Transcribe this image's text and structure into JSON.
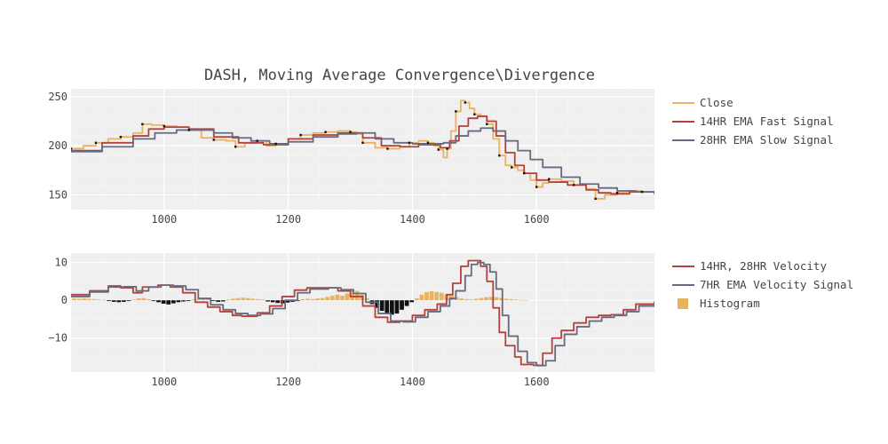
{
  "title": "DASH, Moving Average Convergence\\Divergence",
  "colors": {
    "close": "#e8b35e",
    "fast": "#b5413a",
    "slow": "#666a80",
    "histogram": "#e8b35e",
    "histogram_negative": "#111111",
    "marker": "#111111",
    "plot_bg": "#efefef",
    "grid": "#ffffff"
  },
  "chart_data": [
    {
      "type": "line",
      "panel": "price",
      "xlim": [
        850,
        1790
      ],
      "ylim": [
        135,
        258
      ],
      "x_ticks": [
        1000,
        1200,
        1400,
        1600
      ],
      "y_ticks": [
        150,
        200,
        250
      ],
      "grid": true,
      "legend_position": "right",
      "series": [
        {
          "name": "Close",
          "color_key": "close",
          "points": [
            [
              850,
              197
            ],
            [
              870,
              200
            ],
            [
              890,
              203
            ],
            [
              910,
              207
            ],
            [
              930,
              209
            ],
            [
              950,
              213
            ],
            [
              965,
              222
            ],
            [
              980,
              221
            ],
            [
              1000,
              220
            ],
            [
              1020,
              219
            ],
            [
              1040,
              216
            ],
            [
              1060,
              208
            ],
            [
              1080,
              206
            ],
            [
              1100,
              205
            ],
            [
              1115,
              199
            ],
            [
              1130,
              203
            ],
            [
              1150,
              205
            ],
            [
              1165,
              200
            ],
            [
              1180,
              202
            ],
            [
              1200,
              207
            ],
            [
              1220,
              211
            ],
            [
              1240,
              213
            ],
            [
              1260,
              214
            ],
            [
              1280,
              215
            ],
            [
              1300,
              214
            ],
            [
              1310,
              212
            ],
            [
              1320,
              203
            ],
            [
              1340,
              198
            ],
            [
              1360,
              197
            ],
            [
              1380,
              199
            ],
            [
              1395,
              203
            ],
            [
              1410,
              205
            ],
            [
              1425,
              203
            ],
            [
              1435,
              200
            ],
            [
              1442,
              196
            ],
            [
              1450,
              188
            ],
            [
              1456,
              197
            ],
            [
              1462,
              215
            ],
            [
              1470,
              235
            ],
            [
              1478,
              246
            ],
            [
              1485,
              244
            ],
            [
              1492,
              238
            ],
            [
              1500,
              232
            ],
            [
              1510,
              230
            ],
            [
              1520,
              222
            ],
            [
              1530,
              207
            ],
            [
              1540,
              190
            ],
            [
              1550,
              180
            ],
            [
              1560,
              178
            ],
            [
              1570,
              175
            ],
            [
              1580,
              172
            ],
            [
              1590,
              165
            ],
            [
              1600,
              158
            ],
            [
              1610,
              162
            ],
            [
              1620,
              166
            ],
            [
              1640,
              164
            ],
            [
              1660,
              160
            ],
            [
              1680,
              156
            ],
            [
              1695,
              146
            ],
            [
              1710,
              150
            ],
            [
              1730,
              152
            ],
            [
              1750,
              154
            ],
            [
              1770,
              153
            ],
            [
              1790,
              150
            ]
          ]
        },
        {
          "name": "14HR EMA Fast Signal",
          "color_key": "fast",
          "points": [
            [
              850,
              195
            ],
            [
              900,
              203
            ],
            [
              950,
              210
            ],
            [
              975,
              217
            ],
            [
              1000,
              219
            ],
            [
              1040,
              217
            ],
            [
              1080,
              209
            ],
            [
              1120,
              203
            ],
            [
              1160,
              201
            ],
            [
              1200,
              207
            ],
            [
              1240,
              211
            ],
            [
              1280,
              213
            ],
            [
              1300,
              213
            ],
            [
              1320,
              208
            ],
            [
              1350,
              200
            ],
            [
              1380,
              199
            ],
            [
              1410,
              201
            ],
            [
              1430,
              201
            ],
            [
              1445,
              198
            ],
            [
              1460,
              205
            ],
            [
              1475,
              220
            ],
            [
              1490,
              228
            ],
            [
              1505,
              230
            ],
            [
              1520,
              225
            ],
            [
              1535,
              210
            ],
            [
              1550,
              193
            ],
            [
              1565,
              180
            ],
            [
              1580,
              172
            ],
            [
              1600,
              165
            ],
            [
              1620,
              163
            ],
            [
              1650,
              160
            ],
            [
              1680,
              155
            ],
            [
              1700,
              152
            ],
            [
              1720,
              151
            ],
            [
              1750,
              153
            ],
            [
              1790,
              151
            ]
          ]
        },
        {
          "name": "28HR EMA Slow Signal",
          "color_key": "slow",
          "points": [
            [
              850,
              194
            ],
            [
              900,
              199
            ],
            [
              950,
              207
            ],
            [
              985,
              213
            ],
            [
              1020,
              216
            ],
            [
              1050,
              216
            ],
            [
              1080,
              213
            ],
            [
              1110,
              208
            ],
            [
              1140,
              205
            ],
            [
              1170,
              202
            ],
            [
              1200,
              204
            ],
            [
              1240,
              209
            ],
            [
              1280,
              212
            ],
            [
              1310,
              213
            ],
            [
              1340,
              207
            ],
            [
              1370,
              203
            ],
            [
              1400,
              202
            ],
            [
              1430,
              202
            ],
            [
              1450,
              203
            ],
            [
              1470,
              210
            ],
            [
              1490,
              215
            ],
            [
              1510,
              218
            ],
            [
              1530,
              215
            ],
            [
              1550,
              205
            ],
            [
              1570,
              195
            ],
            [
              1590,
              186
            ],
            [
              1610,
              178
            ],
            [
              1640,
              168
            ],
            [
              1670,
              161
            ],
            [
              1700,
              157
            ],
            [
              1730,
              154
            ],
            [
              1760,
              153
            ],
            [
              1790,
              152
            ]
          ]
        }
      ]
    },
    {
      "type": "line",
      "panel": "momentum",
      "xlim": [
        850,
        1790
      ],
      "ylim": [
        -19,
        12.5
      ],
      "x_ticks": [
        1000,
        1200,
        1400,
        1600
      ],
      "y_ticks": [
        -10,
        0,
        10
      ],
      "grid": true,
      "legend_position": "right",
      "series": [
        {
          "name": "14HR, 28HR Velocity",
          "color_key": "fast",
          "points": [
            [
              850,
              1.5
            ],
            [
              880,
              2.5
            ],
            [
              910,
              3.8
            ],
            [
              930,
              3.3
            ],
            [
              950,
              2.0
            ],
            [
              965,
              3.5
            ],
            [
              990,
              4.0
            ],
            [
              1010,
              3.5
            ],
            [
              1030,
              2.0
            ],
            [
              1050,
              -0.5
            ],
            [
              1070,
              -1.8
            ],
            [
              1090,
              -3.0
            ],
            [
              1110,
              -4.0
            ],
            [
              1125,
              -4.2
            ],
            [
              1150,
              -3.3
            ],
            [
              1170,
              -1.5
            ],
            [
              1190,
              1.0
            ],
            [
              1210,
              2.7
            ],
            [
              1230,
              3.3
            ],
            [
              1260,
              3.3
            ],
            [
              1280,
              2.5
            ],
            [
              1300,
              1.0
            ],
            [
              1320,
              -1.5
            ],
            [
              1340,
              -4.5
            ],
            [
              1360,
              -5.8
            ],
            [
              1380,
              -5.5
            ],
            [
              1400,
              -4.0
            ],
            [
              1420,
              -2.5
            ],
            [
              1440,
              -1.0
            ],
            [
              1455,
              1.5
            ],
            [
              1465,
              4.5
            ],
            [
              1478,
              9.0
            ],
            [
              1490,
              10.5
            ],
            [
              1500,
              10.5
            ],
            [
              1510,
              9.0
            ],
            [
              1520,
              5.0
            ],
            [
              1530,
              -2.0
            ],
            [
              1540,
              -8.5
            ],
            [
              1550,
              -12.0
            ],
            [
              1565,
              -15.0
            ],
            [
              1575,
              -17.0
            ],
            [
              1595,
              -17.2
            ],
            [
              1610,
              -14.0
            ],
            [
              1625,
              -10.0
            ],
            [
              1640,
              -8.0
            ],
            [
              1660,
              -6.0
            ],
            [
              1680,
              -4.5
            ],
            [
              1700,
              -4.0
            ],
            [
              1720,
              -3.8
            ],
            [
              1740,
              -2.5
            ],
            [
              1760,
              -1.0
            ],
            [
              1790,
              -0.3
            ]
          ]
        },
        {
          "name": "7HR EMA Velocity Signal",
          "color_key": "slow",
          "points": [
            [
              850,
              1.0
            ],
            [
              880,
              2.2
            ],
            [
              910,
              3.5
            ],
            [
              935,
              3.6
            ],
            [
              955,
              2.5
            ],
            [
              975,
              3.5
            ],
            [
              995,
              4.0
            ],
            [
              1015,
              3.8
            ],
            [
              1035,
              2.8
            ],
            [
              1055,
              0.5
            ],
            [
              1075,
              -1.2
            ],
            [
              1095,
              -2.5
            ],
            [
              1115,
              -3.5
            ],
            [
              1135,
              -4.0
            ],
            [
              1155,
              -3.6
            ],
            [
              1175,
              -2.2
            ],
            [
              1195,
              0.0
            ],
            [
              1215,
              2.0
            ],
            [
              1235,
              3.0
            ],
            [
              1265,
              3.3
            ],
            [
              1285,
              2.8
            ],
            [
              1305,
              1.8
            ],
            [
              1325,
              -0.5
            ],
            [
              1345,
              -3.5
            ],
            [
              1365,
              -5.5
            ],
            [
              1385,
              -5.7
            ],
            [
              1405,
              -4.5
            ],
            [
              1425,
              -3.0
            ],
            [
              1445,
              -1.5
            ],
            [
              1460,
              0.5
            ],
            [
              1470,
              2.5
            ],
            [
              1485,
              6.5
            ],
            [
              1495,
              9.5
            ],
            [
              1505,
              10.0
            ],
            [
              1515,
              9.5
            ],
            [
              1525,
              7.5
            ],
            [
              1535,
              3.0
            ],
            [
              1545,
              -4.0
            ],
            [
              1555,
              -9.5
            ],
            [
              1570,
              -13.5
            ],
            [
              1585,
              -16.5
            ],
            [
              1600,
              -17.3
            ],
            [
              1615,
              -16.0
            ],
            [
              1630,
              -12.0
            ],
            [
              1645,
              -9.0
            ],
            [
              1665,
              -7.0
            ],
            [
              1685,
              -5.5
            ],
            [
              1705,
              -4.5
            ],
            [
              1725,
              -4.0
            ],
            [
              1745,
              -3.0
            ],
            [
              1765,
              -1.5
            ],
            [
              1790,
              -0.5
            ]
          ]
        }
      ],
      "histogram": {
        "name": "Histogram",
        "color_key": "histogram",
        "x_start": 855,
        "x_step": 8,
        "values": [
          0.5,
          0.4,
          0.5,
          0.4,
          0.3,
          0.2,
          0.1,
          -0.2,
          -0.4,
          -0.5,
          -0.4,
          -0.2,
          0.2,
          0.5,
          0.6,
          0.3,
          -0.2,
          -0.5,
          -0.9,
          -1.1,
          -0.8,
          -0.5,
          -0.3,
          -0.2,
          0.2,
          0.3,
          0.4,
          0.3,
          -0.2,
          -0.4,
          -0.3,
          0.2,
          0.4,
          0.6,
          0.7,
          0.6,
          0.4,
          0.3,
          0.2,
          -0.3,
          -0.5,
          -0.7,
          -0.8,
          -0.6,
          -0.4,
          -0.2,
          0.3,
          0.4,
          0.3,
          0.5,
          0.6,
          0.9,
          1.2,
          1.5,
          1.2,
          1.8,
          3.0,
          2.5,
          1.5,
          0.5,
          -1.0,
          -2.0,
          -2.8,
          -3.6,
          -3.8,
          -3.5,
          -2.5,
          -1.5,
          -0.5,
          0.5,
          1.5,
          2.2,
          2.4,
          2.2,
          2.0,
          1.6,
          1.2,
          0.8,
          0.5,
          0.3,
          0.2,
          0.4,
          0.6,
          0.8,
          0.9,
          0.8,
          0.6,
          0.4,
          0.3,
          0.2,
          0.1,
          0.0
        ]
      }
    }
  ]
}
